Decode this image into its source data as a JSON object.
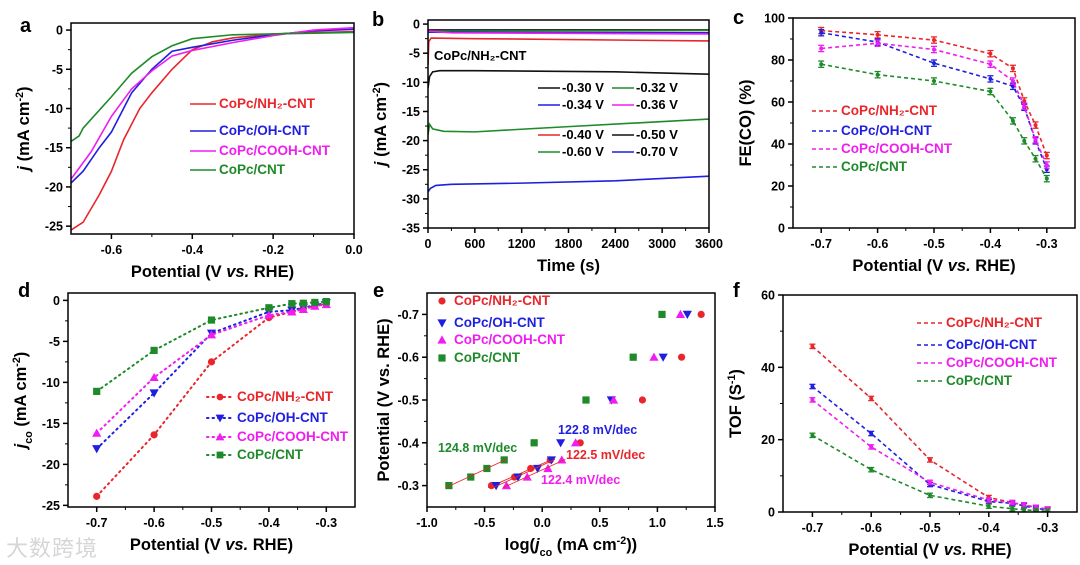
{
  "watermark": "大数跨境",
  "colors": {
    "red": "#e8262b",
    "blue": "#1f1fe0",
    "magenta": "#f01df0",
    "green": "#1e8a2a",
    "black": "#111111"
  },
  "chart_data": [
    {
      "id": "a",
      "panel_label": "a",
      "type": "line",
      "xlabel": [
        {
          "t": "Potential (V "
        },
        {
          "t": "vs.",
          "i": true
        },
        {
          "t": " RHE)"
        }
      ],
      "ylabel": [
        {
          "t": "j",
          "i": true
        },
        {
          "t": " (mA cm"
        },
        {
          "t": "-2",
          "sup": true
        },
        {
          "t": ")"
        }
      ],
      "xlim": [
        -0.7,
        0.0
      ],
      "ylim": [
        -26,
        0.9
      ],
      "xticks": [
        -0.6,
        -0.4,
        -0.2,
        0.0
      ],
      "xticklabels": [
        "-0.6",
        "-0.4",
        "-0.2",
        "0.0"
      ],
      "yticks": [
        0,
        -5,
        -10,
        -15,
        -20,
        -25
      ],
      "yticklabels": [
        "0",
        "-5",
        "-10",
        "-15",
        "-20",
        "-25"
      ],
      "legend_style": "line",
      "series": [
        {
          "name": "CoPc/NH₂-CNT",
          "color": "red",
          "x": [
            -0.7,
            -0.67,
            -0.63,
            -0.6,
            -0.57,
            -0.53,
            -0.5,
            -0.45,
            -0.4,
            -0.35,
            -0.3,
            -0.2,
            -0.1,
            0
          ],
          "y": [
            -25.5,
            -24.5,
            -21,
            -18,
            -14,
            -10,
            -8,
            -5,
            -2.5,
            -1.5,
            -1,
            -0.5,
            -0.3,
            -0.2
          ]
        },
        {
          "name": "CoPc/OH-CNT",
          "color": "blue",
          "x": [
            -0.7,
            -0.67,
            -0.63,
            -0.6,
            -0.57,
            -0.55,
            -0.5,
            -0.45,
            -0.4,
            -0.3,
            -0.2,
            -0.1,
            0
          ],
          "y": [
            -19.5,
            -18,
            -15,
            -13,
            -10,
            -8,
            -5,
            -2.7,
            -2.2,
            -1.3,
            -0.6,
            -0.1,
            0.1
          ]
        },
        {
          "name": "CoPc/COOH-CNT",
          "color": "magenta",
          "x": [
            -0.7,
            -0.65,
            -0.6,
            -0.55,
            -0.5,
            -0.45,
            -0.4,
            -0.3,
            -0.2,
            -0.1,
            0
          ],
          "y": [
            -19,
            -15.5,
            -11,
            -7.5,
            -5.2,
            -3.3,
            -2.6,
            -1.6,
            -0.7,
            0,
            0.3
          ]
        },
        {
          "name": "CoPc/CNT",
          "color": "green",
          "x": [
            -0.7,
            -0.68,
            -0.67,
            -0.6,
            -0.55,
            -0.5,
            -0.45,
            -0.4,
            -0.3,
            -0.2,
            0
          ],
          "y": [
            -14.2,
            -13.5,
            -12.5,
            -8.5,
            -5.5,
            -3.4,
            -2,
            -1.1,
            -0.6,
            -0.5,
            -0.3
          ]
        }
      ]
    },
    {
      "id": "b",
      "panel_label": "b",
      "type": "line",
      "xlabel": [
        {
          "t": "Time (s)"
        }
      ],
      "ylabel": [
        {
          "t": "j",
          "i": true
        },
        {
          "t": " (mA cm"
        },
        {
          "t": "-2",
          "sup": true
        },
        {
          "t": ")"
        }
      ],
      "xlim": [
        0,
        3600
      ],
      "ylim": [
        -35,
        0.7
      ],
      "xticks": [
        0,
        600,
        1200,
        1800,
        2400,
        3000,
        3600
      ],
      "xticklabels": [
        "0",
        "600",
        "1200",
        "1800",
        "2400",
        "3000",
        "3600"
      ],
      "yticks": [
        0,
        -5,
        -10,
        -15,
        -20,
        -25,
        -30,
        -35
      ],
      "yticklabels": [
        "0",
        "-5",
        "-10",
        "-15",
        "-20",
        "-25",
        "-30",
        "-35"
      ],
      "annotation": "CoPc/NH₂-CNT",
      "legend_style": "line",
      "series": [
        {
          "name": "-0.30 V",
          "color": "black",
          "x": [
            0,
            3600
          ],
          "y": [
            -1.0,
            -1.0
          ]
        },
        {
          "name": "-0.32 V",
          "color": "green",
          "x": [
            0,
            3600
          ],
          "y": [
            -1.2,
            -1.1
          ]
        },
        {
          "name": "-0.34 V",
          "color": "blue",
          "x": [
            0,
            3600
          ],
          "y": [
            -1.4,
            -1.5
          ]
        },
        {
          "name": "-0.36 V",
          "color": "magenta",
          "x": [
            0,
            300,
            3600
          ],
          "y": [
            -1.2,
            -1.5,
            -1.7
          ]
        },
        {
          "name": "-0.40 V",
          "color": "red",
          "x": [
            0,
            10,
            40,
            600,
            3600
          ],
          "y": [
            -7,
            -3,
            -2.4,
            -2.5,
            -2.9
          ]
        },
        {
          "name": "-0.50 V",
          "color": "black",
          "x": [
            0,
            20,
            60,
            150,
            600,
            2400,
            3600
          ],
          "y": [
            -11,
            -9,
            -8.2,
            -8,
            -8,
            -8.2,
            -8.6
          ]
        },
        {
          "name": "-0.60 V",
          "color": "green",
          "x": [
            0,
            20,
            60,
            200,
            600,
            1800,
            3600
          ],
          "y": [
            -19,
            -17.2,
            -18,
            -18.4,
            -18.5,
            -17.6,
            -16.3
          ]
        },
        {
          "name": "-0.70 V",
          "color": "blue",
          "x": [
            0,
            30,
            100,
            300,
            1200,
            2400,
            3600
          ],
          "y": [
            -28.8,
            -28.2,
            -27.7,
            -27.5,
            -27.3,
            -26.9,
            -26.1
          ]
        }
      ]
    },
    {
      "id": "c",
      "panel_label": "c",
      "type": "line",
      "xlabel": [
        {
          "t": "Potential (V "
        },
        {
          "t": "vs.",
          "i": true
        },
        {
          "t": " RHE)"
        }
      ],
      "ylabel": [
        {
          "t": "FE(CO) (%)"
        }
      ],
      "xlim": [
        -0.75,
        -0.25
      ],
      "ylim": [
        0,
        100
      ],
      "xticks": [
        -0.7,
        -0.6,
        -0.5,
        -0.4,
        -0.3
      ],
      "xticklabels": [
        "-0.7",
        "-0.6",
        "-0.5",
        "-0.4",
        "-0.3"
      ],
      "yticks": [
        0,
        20,
        40,
        60,
        80,
        100
      ],
      "yticklabels": [
        "0",
        "20",
        "40",
        "60",
        "80",
        "100"
      ],
      "legend_style": "dash",
      "dashed": true,
      "errorbars": true,
      "err": 1.5,
      "series": [
        {
          "name": "CoPc/NH₂-CNT",
          "color": "red",
          "x": [
            -0.7,
            -0.6,
            -0.5,
            -0.4,
            -0.36,
            -0.34,
            -0.32,
            -0.3
          ],
          "y": [
            94,
            92,
            89.5,
            83,
            76,
            60.5,
            49,
            34.5
          ]
        },
        {
          "name": "CoPc/OH-CNT",
          "color": "blue",
          "x": [
            -0.7,
            -0.6,
            -0.5,
            -0.4,
            -0.36,
            -0.34,
            -0.32,
            -0.3
          ],
          "y": [
            93,
            88.5,
            78.5,
            71,
            67.5,
            57.5,
            41.5,
            28
          ]
        },
        {
          "name": "CoPc/COOH-CNT",
          "color": "magenta",
          "x": [
            -0.7,
            -0.6,
            -0.5,
            -0.4,
            -0.36,
            -0.34,
            -0.32,
            -0.3
          ],
          "y": [
            85.5,
            88,
            85,
            78,
            70,
            58,
            42,
            30
          ]
        },
        {
          "name": "CoPc/CNT",
          "color": "green",
          "x": [
            -0.7,
            -0.6,
            -0.5,
            -0.4,
            -0.36,
            -0.34,
            -0.32,
            -0.3
          ],
          "y": [
            78,
            73,
            70,
            65,
            51,
            41.5,
            33,
            23.5
          ]
        }
      ]
    },
    {
      "id": "d",
      "panel_label": "d",
      "type": "line",
      "xlabel": [
        {
          "t": "Potential (V "
        },
        {
          "t": "vs.",
          "i": true
        },
        {
          "t": " RHE)"
        }
      ],
      "ylabel": [
        {
          "t": "j",
          "i": true
        },
        {
          "t": "co",
          "sub": true
        },
        {
          "t": " (mA cm"
        },
        {
          "t": "-2",
          "sup": true
        },
        {
          "t": ")"
        }
      ],
      "xlim": [
        -0.75,
        -0.25
      ],
      "ylim": [
        -25.2,
        0.9
      ],
      "xticks": [
        -0.7,
        -0.6,
        -0.5,
        -0.4,
        -0.3
      ],
      "xticklabels": [
        "-0.7",
        "-0.6",
        "-0.5",
        "-0.4",
        "-0.3"
      ],
      "yticks": [
        0,
        -5,
        -10,
        -15,
        -20,
        -25
      ],
      "yticklabels": [
        "0",
        "-5",
        "-10",
        "-15",
        "-20",
        "-25"
      ],
      "legend_style": "dot-marker",
      "dotted": true,
      "series": [
        {
          "name": "CoPc/NH₂-CNT",
          "color": "red",
          "marker": "circle",
          "x": [
            -0.7,
            -0.6,
            -0.5,
            -0.4,
            -0.36,
            -0.34,
            -0.32,
            -0.3
          ],
          "y": [
            -23.9,
            -16.4,
            -7.5,
            -2.1,
            -1.4,
            -1.0,
            -0.7,
            -0.4
          ]
        },
        {
          "name": "CoPc/OH-CNT",
          "color": "blue",
          "marker": "tri-down",
          "x": [
            -0.7,
            -0.6,
            -0.5,
            -0.4,
            -0.36,
            -0.34,
            -0.32,
            -0.3
          ],
          "y": [
            -18.1,
            -11.3,
            -4.0,
            -1.4,
            -1.2,
            -0.9,
            -0.6,
            -0.3
          ]
        },
        {
          "name": "CoPc/COOH-CNT",
          "color": "magenta",
          "marker": "tri-up",
          "x": [
            -0.7,
            -0.6,
            -0.5,
            -0.4,
            -0.36,
            -0.34,
            -0.32,
            -0.3
          ],
          "y": [
            -16.2,
            -9.4,
            -4.2,
            -1.8,
            -1.4,
            -1.1,
            -0.7,
            -0.5
          ]
        },
        {
          "name": "CoPc/CNT",
          "color": "green",
          "marker": "square",
          "x": [
            -0.7,
            -0.6,
            -0.5,
            -0.4,
            -0.36,
            -0.34,
            -0.32,
            -0.3
          ],
          "y": [
            -11.1,
            -6.1,
            -2.4,
            -0.9,
            -0.4,
            -0.35,
            -0.25,
            -0.15
          ]
        }
      ]
    },
    {
      "id": "e",
      "panel_label": "e",
      "type": "scatter",
      "xlabel": [
        {
          "t": "log("
        },
        {
          "t": "j",
          "i": true
        },
        {
          "t": "co",
          "sub": true
        },
        {
          "t": " (mA cm"
        },
        {
          "t": "-2",
          "sup": true
        },
        {
          "t": "))"
        }
      ],
      "ylabel": [
        {
          "t": "Potential (V vs. RHE)"
        }
      ],
      "xlim": [
        -1.0,
        1.5
      ],
      "ylim": [
        -0.25,
        -0.75
      ],
      "xticks": [
        -1.0,
        -0.5,
        0.0,
        0.5,
        1.0,
        1.5
      ],
      "xticklabels": [
        "-1.0",
        "-0.5",
        "0.0",
        "0.5",
        "1.0",
        "1.5"
      ],
      "yticks": [
        -0.3,
        -0.4,
        -0.5,
        -0.6,
        -0.7
      ],
      "yticklabels": [
        "-0.3",
        "-0.4",
        "-0.5",
        "-0.6",
        "-0.7"
      ],
      "legend_style": "marker",
      "series": [
        {
          "name": "CoPc/NH₂-CNT",
          "color": "red",
          "marker": "circle",
          "x": [
            1.38,
            1.21,
            0.87,
            0.33,
            0.07,
            -0.1,
            -0.24,
            -0.44
          ],
          "y": [
            -0.7,
            -0.6,
            -0.5,
            -0.4,
            -0.36,
            -0.34,
            -0.32,
            -0.3
          ],
          "fit_slope_label": "122.5 mV/dec"
        },
        {
          "name": "CoPc/OH-CNT",
          "color": "blue",
          "marker": "tri-down",
          "x": [
            1.26,
            1.05,
            0.6,
            0.16,
            0.08,
            -0.04,
            -0.21,
            -0.4
          ],
          "y": [
            -0.7,
            -0.6,
            -0.5,
            -0.4,
            -0.36,
            -0.34,
            -0.32,
            -0.3
          ],
          "fit_slope_label": "122.8 mV/dec"
        },
        {
          "name": "CoPc/COOH-CNT",
          "color": "magenta",
          "marker": "tri-up",
          "x": [
            1.2,
            0.97,
            0.62,
            0.29,
            0.17,
            0.05,
            -0.13,
            -0.31
          ],
          "y": [
            -0.7,
            -0.6,
            -0.5,
            -0.4,
            -0.36,
            -0.34,
            -0.32,
            -0.3
          ],
          "fit_slope_label": "122.4 mV/dec"
        },
        {
          "name": "CoPc/CNT",
          "color": "green",
          "marker": "square",
          "x": [
            1.04,
            0.79,
            0.38,
            -0.07,
            -0.33,
            -0.48,
            -0.62,
            -0.81
          ],
          "y": [
            -0.7,
            -0.6,
            -0.5,
            -0.4,
            -0.36,
            -0.34,
            -0.32,
            -0.3
          ],
          "fit_slope_label": "124.8 mV/dec"
        }
      ]
    },
    {
      "id": "f",
      "panel_label": "f",
      "type": "line",
      "xlabel": [
        {
          "t": "Potential (V "
        },
        {
          "t": "vs.",
          "i": true
        },
        {
          "t": " RHE)"
        }
      ],
      "ylabel": [
        {
          "t": "TOF (S"
        },
        {
          "t": "-1",
          "sup": true
        },
        {
          "t": ")"
        }
      ],
      "xlim": [
        -0.75,
        -0.25
      ],
      "ylim": [
        0,
        60
      ],
      "xticks": [
        -0.7,
        -0.6,
        -0.5,
        -0.4,
        -0.3
      ],
      "xticklabels": [
        "-0.7",
        "-0.6",
        "-0.5",
        "-0.4",
        "-0.3"
      ],
      "yticks": [
        0,
        20,
        40,
        60
      ],
      "yticklabels": [
        "0",
        "20",
        "40",
        "60"
      ],
      "legend_style": "dash",
      "dashed": true,
      "errorbars": true,
      "err": 0.6,
      "series": [
        {
          "name": "CoPc/NH₂-CNT",
          "color": "red",
          "x": [
            -0.7,
            -0.6,
            -0.5,
            -0.4,
            -0.36,
            -0.34,
            -0.32,
            -0.3
          ],
          "y": [
            45.8,
            31.4,
            14.4,
            4.0,
            2.6,
            1.9,
            1.2,
            0.8
          ]
        },
        {
          "name": "CoPc/OH-CNT",
          "color": "blue",
          "x": [
            -0.7,
            -0.6,
            -0.5,
            -0.4,
            -0.36,
            -0.34,
            -0.32,
            -0.3
          ],
          "y": [
            34.7,
            21.7,
            7.6,
            2.9,
            2.4,
            1.7,
            1.0,
            0.6
          ]
        },
        {
          "name": "CoPc/COOH-CNT",
          "color": "magenta",
          "x": [
            -0.7,
            -0.6,
            -0.5,
            -0.4,
            -0.36,
            -0.34,
            -0.32,
            -0.3
          ],
          "y": [
            31.0,
            18.0,
            8.2,
            3.3,
            2.6,
            2.0,
            1.3,
            0.8
          ]
        },
        {
          "name": "CoPc/CNT",
          "color": "green",
          "x": [
            -0.7,
            -0.6,
            -0.5,
            -0.4,
            -0.36,
            -0.34,
            -0.32,
            -0.3
          ],
          "y": [
            21.2,
            11.7,
            4.6,
            1.6,
            0.9,
            0.6,
            0.4,
            0.2
          ]
        }
      ]
    }
  ]
}
